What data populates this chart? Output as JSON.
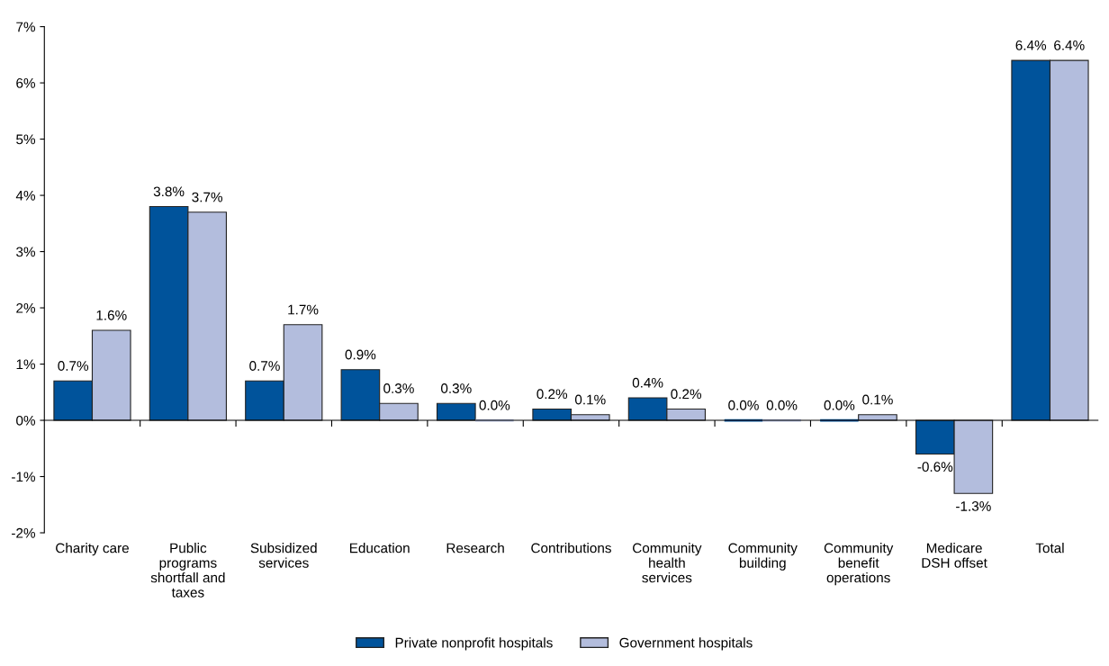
{
  "chart_data": {
    "type": "bar",
    "categories": [
      "Charity care",
      "Public\nprograms\nshortfall and\ntaxes",
      "Subsidized\nservices",
      "Education",
      "Research",
      "Contributions",
      "Community\nhealth\nservices",
      "Community\nbuilding",
      "Community\nbenefit\noperations",
      "Medicare\nDSH offset",
      "Total"
    ],
    "series": [
      {
        "name": "Private nonprofit hospitals",
        "color": "#00539b",
        "values": [
          0.7,
          3.8,
          0.7,
          0.9,
          0.3,
          0.2,
          0.4,
          0.0,
          0.0,
          -0.6,
          6.4
        ],
        "value_labels": [
          "0.7%",
          "3.8%",
          "0.7%",
          "0.9%",
          "0.3%",
          "0.2%",
          "0.4%",
          "0.0%",
          "0.0%",
          "-0.6%",
          "6.4%"
        ]
      },
      {
        "name": "Government hospitals",
        "color": "#b3bddd",
        "values": [
          1.6,
          3.7,
          1.7,
          0.3,
          0.0,
          0.1,
          0.2,
          0.0,
          0.1,
          -1.3,
          6.4
        ],
        "value_labels": [
          "1.6%",
          "3.7%",
          "1.7%",
          "0.3%",
          "0.0%",
          "0.1%",
          "0.2%",
          "0.0%",
          "0.1%",
          "-1.3%",
          "6.4%"
        ]
      }
    ],
    "ylim": [
      -2,
      7
    ],
    "yticks": [
      {
        "value": -2,
        "label": "-2%"
      },
      {
        "value": -1,
        "label": "-1%"
      },
      {
        "value": 0,
        "label": "0%"
      },
      {
        "value": 1,
        "label": "1%"
      },
      {
        "value": 2,
        "label": "2%"
      },
      {
        "value": 3,
        "label": "3%"
      },
      {
        "value": 4,
        "label": "4%"
      },
      {
        "value": 5,
        "label": "5%"
      },
      {
        "value": 6,
        "label": "6%"
      },
      {
        "value": 7,
        "label": "7%"
      }
    ],
    "legend": "bottom"
  }
}
